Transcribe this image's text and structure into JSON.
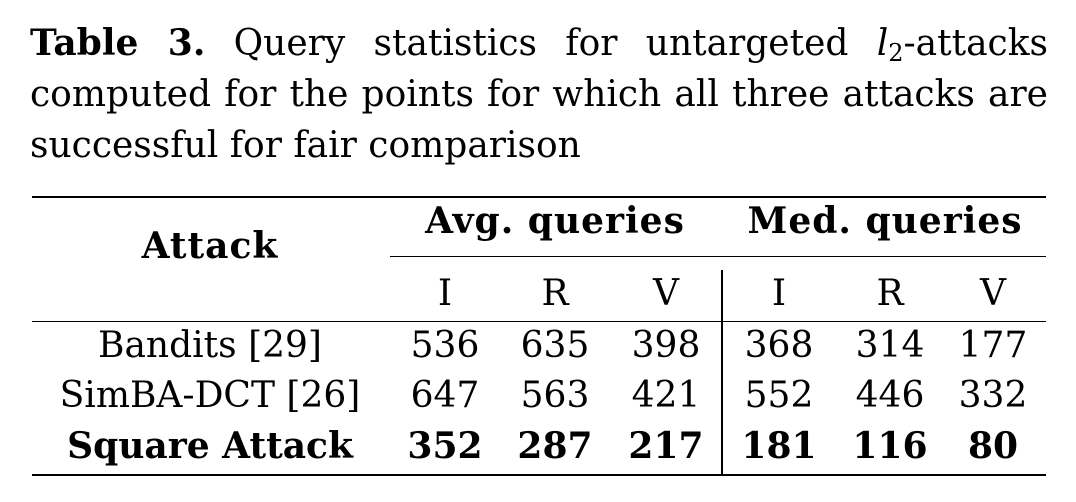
{
  "caption": {
    "label": "Table 3.",
    "text_before_math": " Query statistics for untargeted ",
    "math_var": "l",
    "math_sub": "2",
    "text_after_math": "-attacks computed for the points for which all three attacks are successful for fair comparison"
  },
  "table": {
    "header": {
      "attack": "Attack",
      "avg_queries": "Avg. queries",
      "med_queries": "Med. queries",
      "subcols": [
        "I",
        "R",
        "V",
        "I",
        "R",
        "V"
      ]
    },
    "rows": [
      {
        "name": "Bandits [29]",
        "values": [
          "536",
          "635",
          "398",
          "368",
          "314",
          "177"
        ],
        "bold": false
      },
      {
        "name": "SimBA-DCT [26]",
        "values": [
          "647",
          "563",
          "421",
          "552",
          "446",
          "332"
        ],
        "bold": false
      },
      {
        "name": "Square Attack",
        "values": [
          "352",
          "287",
          "217",
          "181",
          "116",
          "80"
        ],
        "bold": true
      }
    ]
  }
}
